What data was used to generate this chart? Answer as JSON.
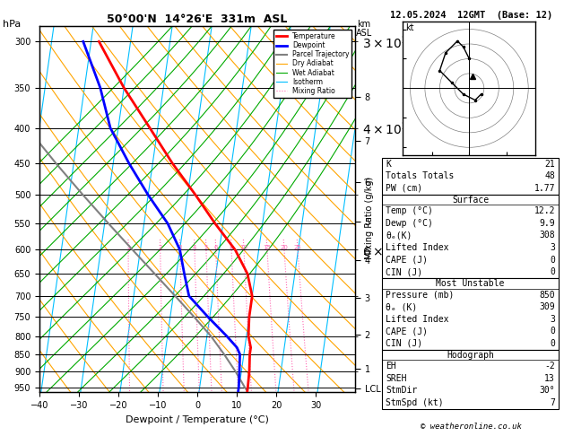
{
  "title_left": "50°00'N  14°26'E  331m  ASL",
  "title_right": "12.05.2024  12GMT  (Base: 12)",
  "xlabel": "Dewpoint / Temperature (°C)",
  "pressure_levels": [
    300,
    350,
    400,
    450,
    500,
    550,
    600,
    650,
    700,
    750,
    800,
    850,
    900,
    950
  ],
  "pressure_ticks": [
    300,
    350,
    400,
    450,
    500,
    550,
    600,
    650,
    700,
    750,
    800,
    850,
    900,
    950
  ],
  "temp_ticks": [
    -40,
    -30,
    -20,
    -10,
    0,
    10,
    20,
    30
  ],
  "km_ticks": [
    1,
    2,
    3,
    4,
    5,
    6,
    7,
    8
  ],
  "km_pressures": [
    893.0,
    795.0,
    705.0,
    622.0,
    547.0,
    479.0,
    417.0,
    361.0
  ],
  "lcl_pressure": 952,
  "temperature_profile": {
    "pressure": [
      300,
      350,
      400,
      450,
      500,
      550,
      600,
      650,
      700,
      750,
      800,
      831,
      850,
      900,
      950,
      960
    ],
    "temp": [
      -38,
      -30,
      -22,
      -15,
      -8,
      -2,
      4,
      8,
      10,
      10,
      10.5,
      11.5,
      11.5,
      12,
      12.2,
      12.2
    ]
  },
  "dewpoint_profile": {
    "pressure": [
      300,
      350,
      400,
      450,
      500,
      550,
      600,
      650,
      700,
      750,
      800,
      831,
      850,
      900,
      950,
      960
    ],
    "temp": [
      -42,
      -36,
      -32,
      -26,
      -20,
      -14,
      -10,
      -8,
      -6,
      -0.5,
      5,
      8,
      9,
      9.5,
      9.9,
      9.9
    ]
  },
  "parcel_profile": {
    "pressure": [
      960,
      950,
      900,
      850,
      800,
      750,
      700,
      650,
      600,
      550,
      500,
      450,
      400
    ],
    "temp": [
      12.2,
      11.5,
      8.5,
      5.0,
      1.0,
      -4.0,
      -9.5,
      -15.5,
      -22.0,
      -29.0,
      -36.5,
      -44.5,
      -53.0
    ]
  },
  "iso_color": "#00bfff",
  "iso_lw": 0.8,
  "da_color": "#ffa500",
  "da_lw": 0.8,
  "wet_color": "#00aa00",
  "wet_lw": 0.8,
  "mr_color": "#ff69b4",
  "mr_lw": 0.8,
  "mr_values": [
    1,
    2,
    3,
    4,
    5,
    6,
    8,
    10,
    15,
    20,
    25
  ],
  "color_temperature": "#ff0000",
  "color_dewpoint": "#0000ff",
  "color_parcel": "#808080",
  "stats": {
    "K": 21,
    "Totals_Totals": 48,
    "PW_cm": 1.77,
    "Surface_Temp": 12.2,
    "Surface_Dewp": 9.9,
    "Surface_theta_e": 308,
    "Surface_LI": 3,
    "Surface_CAPE": 0,
    "Surface_CIN": 0,
    "MU_Pressure": 850,
    "MU_theta_e": 309,
    "MU_LI": 3,
    "MU_CAPE": 0,
    "MU_CIN": 0,
    "EH": -2,
    "SREH": 13,
    "StmDir": "30°",
    "StmSpd": 7
  },
  "hodograph_winds": {
    "u": [
      0,
      -1,
      -2,
      -4,
      -5,
      -3,
      -1,
      1,
      2
    ],
    "v": [
      5,
      7,
      8,
      6,
      3,
      1,
      -1,
      -2,
      -1
    ]
  }
}
